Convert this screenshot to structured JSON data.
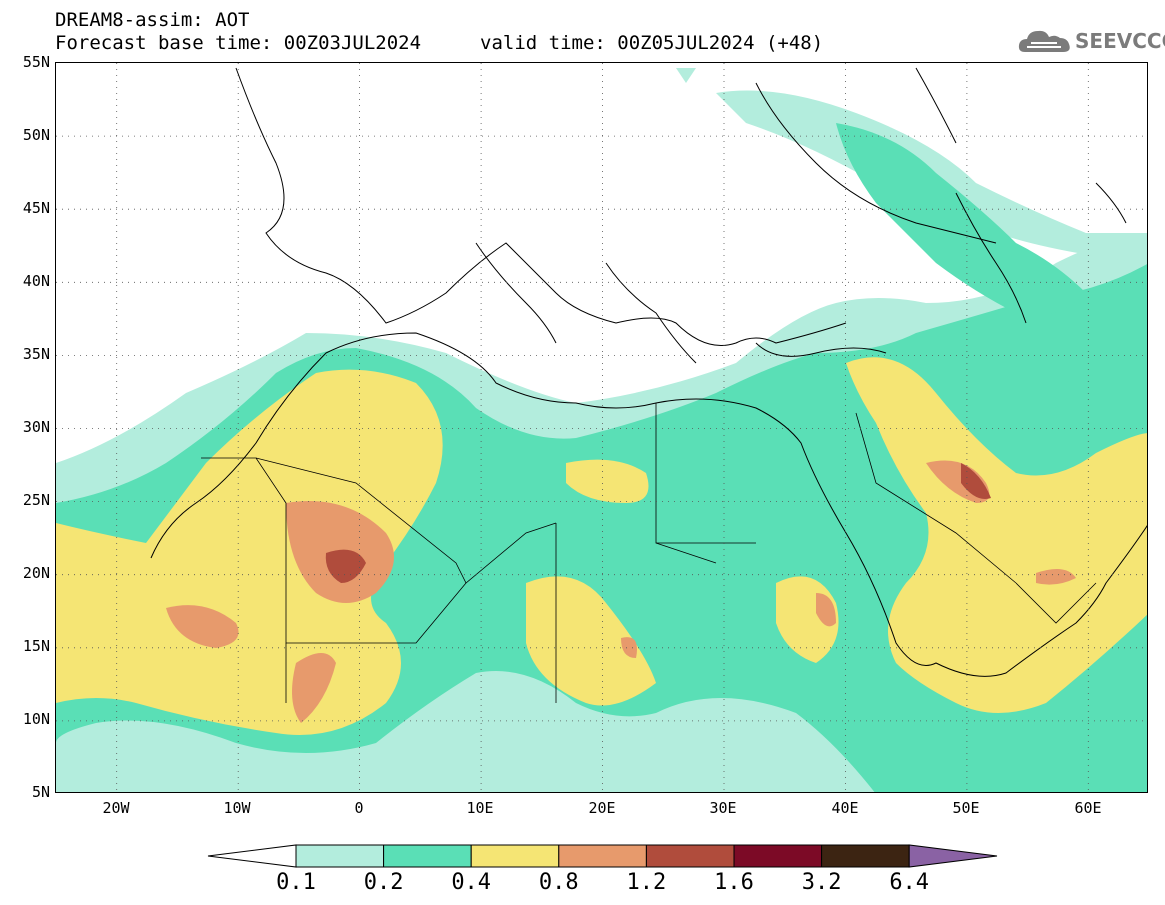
{
  "header": {
    "title": "DREAM8-assim: AOT",
    "base_time": "Forecast base time: 00Z03JUL2024",
    "valid_time": "valid time: 00Z05JUL2024 (+48)"
  },
  "logo": {
    "text": "SEEVCCC",
    "icon": "cloud-logo-icon"
  },
  "map": {
    "lat_labels": [
      "55N",
      "50N",
      "45N",
      "40N",
      "35N",
      "30N",
      "25N",
      "20N",
      "15N",
      "10N",
      "5N"
    ],
    "lon_labels": [
      "20W",
      "10W",
      "0",
      "10E",
      "20E",
      "30E",
      "40E",
      "50E",
      "60E"
    ],
    "lat_range": [
      5,
      55
    ],
    "lon_range": [
      -25,
      65
    ],
    "grid": "dotted"
  },
  "colorbar": {
    "labels": [
      "0.1",
      "0.2",
      "0.4",
      "0.8",
      "1.2",
      "1.6",
      "3.2",
      "6.4"
    ],
    "colors": [
      "#b3eddd",
      "#5adfb6",
      "#f5e574",
      "#e79a6c",
      "#b04c3c",
      "#7c0a26",
      "#3c2412",
      "#8a62a4"
    ],
    "under_color": "#ffffff"
  },
  "colors": {
    "background": "#ffffff",
    "coast": "#000000",
    "level1": "#b3eddd",
    "level2": "#5adfb6",
    "level3": "#f5e574",
    "level4": "#e79a6c",
    "level5": "#b04c3c",
    "level6": "#7c0a26"
  }
}
